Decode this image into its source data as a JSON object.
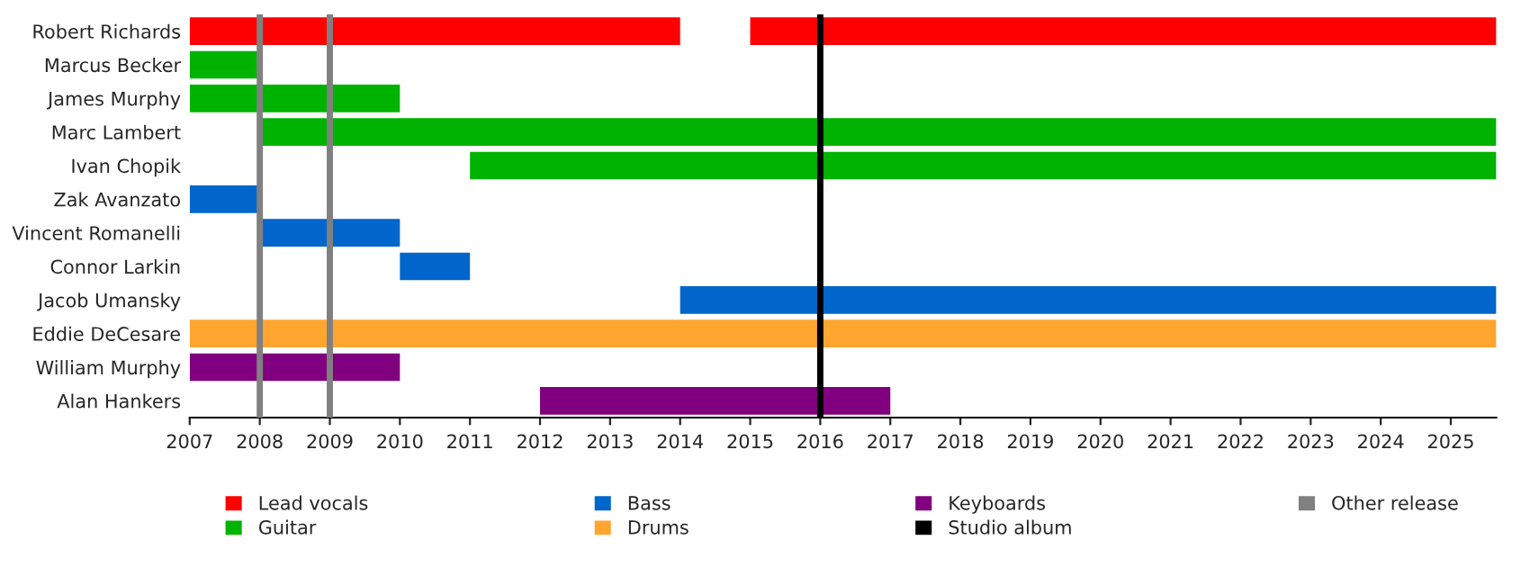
{
  "chart_data": {
    "type": "bar",
    "orientation": "horizontal",
    "categories": [
      "Robert Richards",
      "Marcus Becker",
      "James Murphy",
      "Marc Lambert",
      "Ivan Chopik",
      "Zak Avanzato",
      "Vincent Romanelli",
      "Connor Larkin",
      "Jacob Umansky",
      "Eddie DeCesare",
      "William Murphy",
      "Alan Hankers"
    ],
    "series": [
      {
        "name": "Lead vocals",
        "color": "#ff0000",
        "base": [
          2007,
          null,
          null,
          null,
          null,
          null,
          null,
          null,
          null,
          null,
          null,
          null
        ],
        "values": [
          7,
          null,
          null,
          null,
          null,
          null,
          null,
          null,
          null,
          null,
          null,
          null
        ]
      },
      {
        "color": "#ff0000",
        "base": [
          2015,
          null,
          null,
          null,
          null,
          null,
          null,
          null,
          null,
          null,
          null,
          null
        ],
        "values": [
          10.65,
          null,
          null,
          null,
          null,
          null,
          null,
          null,
          null,
          null,
          null,
          null
        ]
      },
      {
        "name": "Guitar",
        "color": "#00b300",
        "base": [
          null,
          2007,
          2007,
          2008,
          2011,
          null,
          null,
          null,
          null,
          null,
          null,
          null
        ],
        "values": [
          null,
          1,
          3,
          17.65,
          14.65,
          null,
          null,
          null,
          null,
          null,
          null,
          null
        ]
      },
      {
        "name": "Bass",
        "color": "#0066cc",
        "base": [
          null,
          null,
          null,
          null,
          null,
          2007,
          2008,
          2010,
          2014,
          null,
          null,
          null
        ],
        "values": [
          null,
          null,
          null,
          null,
          null,
          1,
          2,
          1,
          11.65,
          null,
          null,
          null
        ]
      },
      {
        "name": "Drums",
        "color": "#ffa530",
        "base": [
          null,
          null,
          null,
          null,
          null,
          null,
          null,
          null,
          null,
          2007,
          null,
          null
        ],
        "values": [
          null,
          null,
          null,
          null,
          null,
          null,
          null,
          null,
          null,
          18.65,
          null,
          null
        ]
      },
      {
        "name": "Keyboards",
        "color": "#800080",
        "base": [
          null,
          null,
          null,
          null,
          null,
          null,
          null,
          null,
          null,
          null,
          2007,
          2012
        ],
        "values": [
          null,
          null,
          null,
          null,
          null,
          null,
          null,
          null,
          null,
          null,
          3,
          5
        ]
      }
    ],
    "ref_lines": [
      {
        "axis": "x",
        "value": 2016,
        "label": "Studio album",
        "color": "#000000"
      },
      {
        "axis": "x",
        "value": 2008,
        "label": "Other release",
        "color": "#808080"
      },
      {
        "axis": "x",
        "value": 2009,
        "label": null,
        "color": "#808080"
      }
    ],
    "xlim": [
      2007,
      2025.65
    ],
    "xticks": [
      2007,
      2008,
      2009,
      2010,
      2011,
      2012,
      2013,
      2014,
      2015,
      2016,
      2017,
      2018,
      2019,
      2020,
      2021,
      2022,
      2023,
      2024,
      2025
    ],
    "grid": false,
    "legend": "bottom"
  }
}
